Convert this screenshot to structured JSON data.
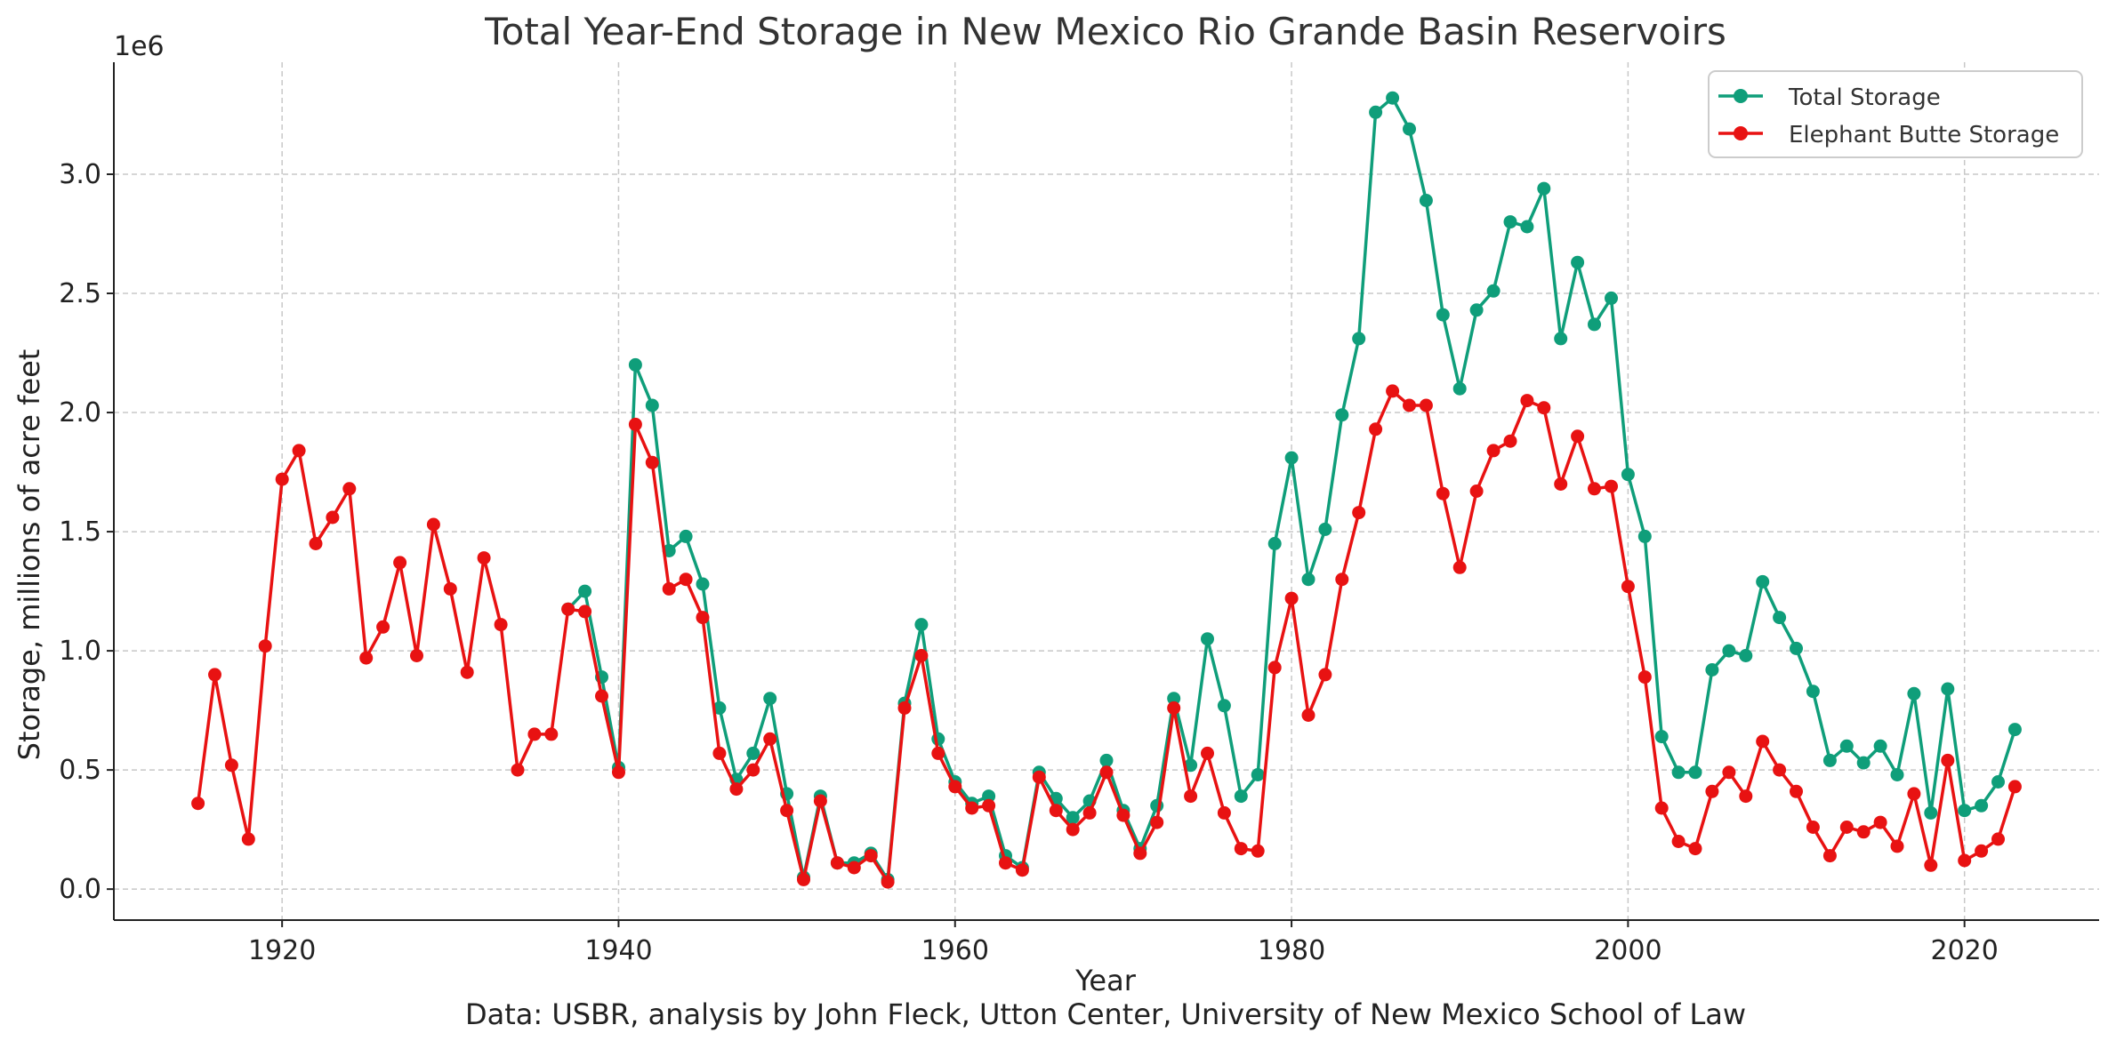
{
  "chart_data": {
    "type": "line",
    "title": "Total Year-End Storage in New Mexico Rio Grande Basin Reservoirs",
    "xlabel": "Year",
    "ylabel": "Storage, millions of acre feet",
    "y_offset_text": "1e6",
    "caption": "Data: USBR, analysis by John Fleck, Utton Center, University of New Mexico School of Law",
    "xlim": [
      1910,
      2028
    ],
    "ylim": [
      -130000,
      3470000
    ],
    "x_ticks": [
      1920,
      1940,
      1960,
      1980,
      2000,
      2020
    ],
    "x_tick_labels": [
      "1920",
      "1940",
      "1960",
      "1980",
      "2000",
      "2020"
    ],
    "y_ticks": [
      0,
      500000,
      1000000,
      1500000,
      2000000,
      2500000,
      3000000
    ],
    "y_tick_labels": [
      "0.0",
      "0.5",
      "1.0",
      "1.5",
      "2.0",
      "2.5",
      "3.0"
    ],
    "grid": true,
    "legend_position": "top-right",
    "series": [
      {
        "name": "Total Storage",
        "color": "#0f9e7a",
        "points": [
          [
            1937,
            1175000
          ],
          [
            1938,
            1250000
          ],
          [
            1939,
            890000
          ],
          [
            1940,
            510000
          ],
          [
            1941,
            2200000
          ],
          [
            1942,
            2030000
          ],
          [
            1943,
            1420000
          ],
          [
            1944,
            1480000
          ],
          [
            1945,
            1280000
          ],
          [
            1946,
            760000
          ],
          [
            1947,
            460000
          ],
          [
            1948,
            570000
          ],
          [
            1949,
            800000
          ],
          [
            1950,
            400000
          ],
          [
            1951,
            50000
          ],
          [
            1952,
            390000
          ],
          [
            1953,
            110000
          ],
          [
            1954,
            110000
          ],
          [
            1955,
            150000
          ],
          [
            1956,
            40000
          ],
          [
            1957,
            780000
          ],
          [
            1958,
            1110000
          ],
          [
            1959,
            630000
          ],
          [
            1960,
            450000
          ],
          [
            1961,
            360000
          ],
          [
            1962,
            390000
          ],
          [
            1963,
            140000
          ],
          [
            1964,
            90000
          ],
          [
            1965,
            490000
          ],
          [
            1966,
            380000
          ],
          [
            1967,
            300000
          ],
          [
            1968,
            370000
          ],
          [
            1969,
            540000
          ],
          [
            1970,
            330000
          ],
          [
            1971,
            170000
          ],
          [
            1972,
            350000
          ],
          [
            1973,
            800000
          ],
          [
            1974,
            520000
          ],
          [
            1975,
            1050000
          ],
          [
            1976,
            770000
          ],
          [
            1977,
            390000
          ],
          [
            1978,
            480000
          ],
          [
            1979,
            1450000
          ],
          [
            1980,
            1810000
          ],
          [
            1981,
            1300000
          ],
          [
            1982,
            1510000
          ],
          [
            1983,
            1990000
          ],
          [
            1984,
            2310000
          ],
          [
            1985,
            3260000
          ],
          [
            1986,
            3320000
          ],
          [
            1987,
            3190000
          ],
          [
            1988,
            2890000
          ],
          [
            1989,
            2410000
          ],
          [
            1990,
            2100000
          ],
          [
            1991,
            2430000
          ],
          [
            1992,
            2510000
          ],
          [
            1993,
            2800000
          ],
          [
            1994,
            2780000
          ],
          [
            1995,
            2940000
          ],
          [
            1996,
            2310000
          ],
          [
            1997,
            2630000
          ],
          [
            1998,
            2370000
          ],
          [
            1999,
            2480000
          ],
          [
            2000,
            1740000
          ],
          [
            2001,
            1480000
          ],
          [
            2002,
            640000
          ],
          [
            2003,
            490000
          ],
          [
            2004,
            490000
          ],
          [
            2005,
            920000
          ],
          [
            2006,
            1000000
          ],
          [
            2007,
            980000
          ],
          [
            2008,
            1290000
          ],
          [
            2009,
            1140000
          ],
          [
            2010,
            1010000
          ],
          [
            2011,
            830000
          ],
          [
            2012,
            540000
          ],
          [
            2013,
            600000
          ],
          [
            2014,
            530000
          ],
          [
            2015,
            600000
          ],
          [
            2016,
            480000
          ],
          [
            2017,
            820000
          ],
          [
            2018,
            320000
          ],
          [
            2019,
            840000
          ],
          [
            2020,
            330000
          ],
          [
            2021,
            350000
          ],
          [
            2022,
            450000
          ],
          [
            2023,
            670000
          ]
        ]
      },
      {
        "name": "Elephant Butte Storage",
        "color": "#e81212",
        "points": [
          [
            1915,
            360000
          ],
          [
            1916,
            900000
          ],
          [
            1917,
            520000
          ],
          [
            1918,
            210000
          ],
          [
            1919,
            1020000
          ],
          [
            1920,
            1720000
          ],
          [
            1921,
            1840000
          ],
          [
            1922,
            1450000
          ],
          [
            1923,
            1560000
          ],
          [
            1924,
            1680000
          ],
          [
            1925,
            970000
          ],
          [
            1926,
            1100000
          ],
          [
            1927,
            1370000
          ],
          [
            1928,
            980000
          ],
          [
            1929,
            1530000
          ],
          [
            1930,
            1260000
          ],
          [
            1931,
            910000
          ],
          [
            1932,
            1390000
          ],
          [
            1933,
            1110000
          ],
          [
            1934,
            500000
          ],
          [
            1935,
            650000
          ],
          [
            1936,
            650000
          ],
          [
            1937,
            1175000
          ],
          [
            1938,
            1165000
          ],
          [
            1939,
            810000
          ],
          [
            1940,
            490000
          ],
          [
            1941,
            1950000
          ],
          [
            1942,
            1790000
          ],
          [
            1943,
            1260000
          ],
          [
            1944,
            1300000
          ],
          [
            1945,
            1140000
          ],
          [
            1946,
            570000
          ],
          [
            1947,
            420000
          ],
          [
            1948,
            500000
          ],
          [
            1949,
            630000
          ],
          [
            1950,
            330000
          ],
          [
            1951,
            40000
          ],
          [
            1952,
            370000
          ],
          [
            1953,
            110000
          ],
          [
            1954,
            90000
          ],
          [
            1955,
            140000
          ],
          [
            1956,
            30000
          ],
          [
            1957,
            760000
          ],
          [
            1958,
            980000
          ],
          [
            1959,
            570000
          ],
          [
            1960,
            430000
          ],
          [
            1961,
            340000
          ],
          [
            1962,
            350000
          ],
          [
            1963,
            110000
          ],
          [
            1964,
            80000
          ],
          [
            1965,
            470000
          ],
          [
            1966,
            330000
          ],
          [
            1967,
            250000
          ],
          [
            1968,
            320000
          ],
          [
            1969,
            490000
          ],
          [
            1970,
            310000
          ],
          [
            1971,
            150000
          ],
          [
            1972,
            280000
          ],
          [
            1973,
            760000
          ],
          [
            1974,
            390000
          ],
          [
            1975,
            570000
          ],
          [
            1976,
            320000
          ],
          [
            1977,
            170000
          ],
          [
            1978,
            160000
          ],
          [
            1979,
            930000
          ],
          [
            1980,
            1220000
          ],
          [
            1981,
            730000
          ],
          [
            1982,
            900000
          ],
          [
            1983,
            1300000
          ],
          [
            1984,
            1580000
          ],
          [
            1985,
            1930000
          ],
          [
            1986,
            2090000
          ],
          [
            1987,
            2030000
          ],
          [
            1988,
            2030000
          ],
          [
            1989,
            1660000
          ],
          [
            1990,
            1350000
          ],
          [
            1991,
            1670000
          ],
          [
            1992,
            1840000
          ],
          [
            1993,
            1880000
          ],
          [
            1994,
            2050000
          ],
          [
            1995,
            2020000
          ],
          [
            1996,
            1700000
          ],
          [
            1997,
            1900000
          ],
          [
            1998,
            1680000
          ],
          [
            1999,
            1690000
          ],
          [
            2000,
            1270000
          ],
          [
            2001,
            890000
          ],
          [
            2002,
            340000
          ],
          [
            2003,
            200000
          ],
          [
            2004,
            170000
          ],
          [
            2005,
            410000
          ],
          [
            2006,
            490000
          ],
          [
            2007,
            390000
          ],
          [
            2008,
            620000
          ],
          [
            2009,
            500000
          ],
          [
            2010,
            410000
          ],
          [
            2011,
            260000
          ],
          [
            2012,
            140000
          ],
          [
            2013,
            260000
          ],
          [
            2014,
            240000
          ],
          [
            2015,
            280000
          ],
          [
            2016,
            180000
          ],
          [
            2017,
            400000
          ],
          [
            2018,
            100000
          ],
          [
            2019,
            540000
          ],
          [
            2020,
            120000
          ],
          [
            2021,
            160000
          ],
          [
            2022,
            210000
          ],
          [
            2023,
            430000
          ]
        ]
      }
    ]
  }
}
